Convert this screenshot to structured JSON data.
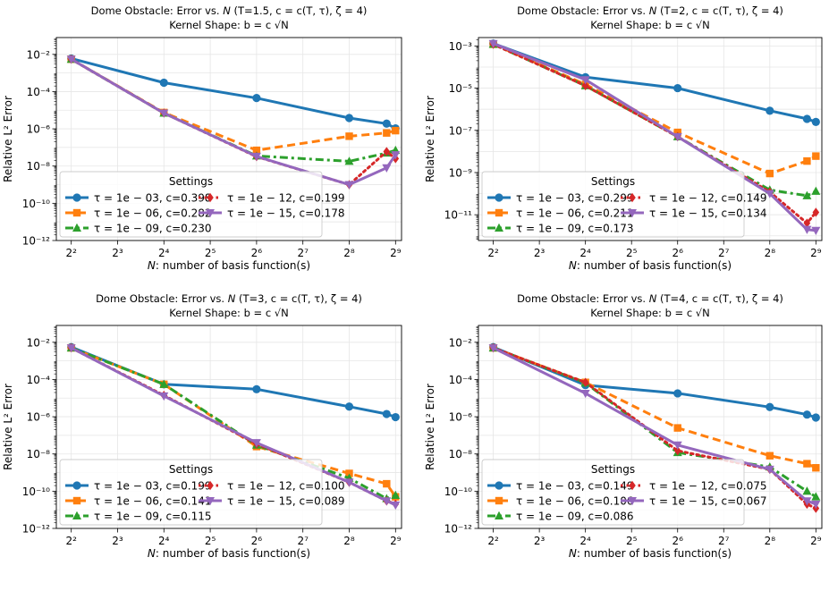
{
  "colors": {
    "blue": "#1f77b4",
    "orange": "#ff7f0e",
    "green": "#2ca02c",
    "red": "#d62728",
    "purple": "#9467bd"
  },
  "chart_data": [
    {
      "type": "line",
      "title_line1_prefix": "Dome Obstacle: Error vs.",
      "title_line1_var": "N",
      "title_line1_suffix": "(T=1.5, c = c(T, τ), ζ = 4)",
      "title_line2": "Kernel Shape: b = c √N",
      "xlabel_var": "N",
      "xlabel_rest": ": number of basis function(s)",
      "ylabel": "Relative L² Error",
      "xscale": "log2",
      "yscale": "log10",
      "x_ticks": [
        4,
        8,
        16,
        32,
        64,
        128,
        256,
        512
      ],
      "x_tick_labels": [
        "2²",
        "2³",
        "2⁴",
        "2⁵",
        "2⁶",
        "2⁷",
        "2⁸",
        "2⁹"
      ],
      "y_ticks": [
        1e-12,
        1e-10,
        1e-08,
        1e-06,
        0.0001,
        0.01
      ],
      "y_tick_labels": [
        "10⁻¹²",
        "10⁻¹⁰",
        "10⁻⁸",
        "10⁻⁶",
        "10⁻⁴",
        "10⁻²"
      ],
      "xlim": [
        3.2,
        560
      ],
      "ylim": [
        1e-12,
        0.08
      ],
      "grid": true,
      "legend": {
        "title": "Settings",
        "placement": "lower-left",
        "columns": 2
      },
      "series": [
        {
          "name": "τ = 1e − 03, c=0.398",
          "color": "blue",
          "dash": "solid",
          "marker": "circle",
          "x": [
            4,
            16,
            64,
            256,
            448,
            512
          ],
          "y": [
            0.006,
            0.0003,
            4.5e-05,
            3.8e-06,
            1.9e-06,
            1.05e-06
          ]
        },
        {
          "name": "τ = 1e − 06, c=0.282",
          "color": "orange",
          "dash": "dashed",
          "marker": "square",
          "x": [
            4,
            16,
            64,
            256,
            448,
            512
          ],
          "y": [
            0.0055,
            7.5e-06,
            7e-08,
            4e-07,
            6e-07,
            8e-07
          ]
        },
        {
          "name": "τ = 1e − 09, c=0.230",
          "color": "green",
          "dash": "dashdot",
          "marker": "triangle-up",
          "x": [
            4,
            16,
            64,
            256,
            448,
            512
          ],
          "y": [
            0.0055,
            7e-06,
            3.5e-08,
            1.8e-08,
            5e-08,
            7e-08
          ]
        },
        {
          "name": "τ = 1e − 12, c=0.199",
          "color": "red",
          "dash": "dotted",
          "marker": "diamond",
          "x": [
            4,
            16,
            64,
            256,
            448,
            512
          ],
          "y": [
            0.0055,
            7e-06,
            3.2e-08,
            1e-09,
            6e-08,
            2.5e-08
          ]
        },
        {
          "name": "τ = 1e − 15, c=0.178",
          "color": "purple",
          "dash": "solid",
          "marker": "triangle-down",
          "x": [
            4,
            16,
            64,
            256,
            448,
            512
          ],
          "y": [
            0.0055,
            7e-06,
            3.3e-08,
            1e-09,
            8e-09,
            4e-08
          ]
        }
      ]
    },
    {
      "type": "line",
      "title_line1_prefix": "Dome Obstacle: Error vs.",
      "title_line1_var": "N",
      "title_line1_suffix": "(T=2, c = c(T, τ), ζ = 4)",
      "title_line2": "Kernel Shape: b = c √N",
      "xlabel_var": "N",
      "xlabel_rest": ": number of basis function(s)",
      "ylabel": "Relative L² Error",
      "xscale": "log2",
      "yscale": "log10",
      "x_ticks": [
        4,
        8,
        16,
        32,
        64,
        128,
        256,
        512
      ],
      "x_tick_labels": [
        "2²",
        "2³",
        "2⁴",
        "2⁵",
        "2⁶",
        "2⁷",
        "2⁸",
        "2⁹"
      ],
      "y_ticks": [
        1e-11,
        1e-09,
        1e-07,
        1e-05,
        0.001
      ],
      "y_tick_labels": [
        "10⁻¹¹",
        "10⁻⁹",
        "10⁻⁷",
        "10⁻⁵",
        "10⁻³"
      ],
      "xlim": [
        3.2,
        560
      ],
      "ylim": [
        6e-13,
        0.0025
      ],
      "grid": true,
      "legend": {
        "title": "Settings",
        "placement": "lower-left",
        "columns": 2
      },
      "series": [
        {
          "name": "τ = 1e − 03, c=0.299",
          "color": "blue",
          "dash": "solid",
          "marker": "circle",
          "x": [
            4,
            16,
            64,
            256,
            448,
            512
          ],
          "y": [
            0.0013,
            3.3e-05,
            1e-05,
            8.5e-07,
            3.5e-07,
            2.5e-07
          ]
        },
        {
          "name": "τ = 1e − 06, c=0.211",
          "color": "orange",
          "dash": "dashed",
          "marker": "square",
          "x": [
            4,
            16,
            64,
            256,
            448,
            512
          ],
          "y": [
            0.0012,
            1.5e-05,
            8e-08,
            9e-10,
            3.5e-09,
            6e-09
          ]
        },
        {
          "name": "τ = 1e − 09, c=0.173",
          "color": "green",
          "dash": "dashdot",
          "marker": "triangle-up",
          "x": [
            4,
            16,
            64,
            256,
            448,
            512
          ],
          "y": [
            0.0012,
            1.3e-05,
            5e-08,
            1.5e-10,
            8e-11,
            1.3e-10
          ]
        },
        {
          "name": "τ = 1e − 12, c=0.149",
          "color": "red",
          "dash": "dotted",
          "marker": "diamond",
          "x": [
            4,
            16,
            64,
            256,
            448,
            512
          ],
          "y": [
            0.0012,
            1.3e-05,
            5e-08,
            1.2e-10,
            4e-12,
            1.3e-11
          ]
        },
        {
          "name": "τ = 1e − 15, c=0.134",
          "color": "purple",
          "dash": "solid",
          "marker": "triangle-down",
          "x": [
            4,
            16,
            64,
            256,
            448,
            512
          ],
          "y": [
            0.0013,
            2.5e-05,
            5e-08,
            1e-10,
            2e-12,
            1.8e-12
          ]
        }
      ]
    },
    {
      "type": "line",
      "title_line1_prefix": "Dome Obstacle: Error vs.",
      "title_line1_var": "N",
      "title_line1_suffix": "(T=3, c = c(T, τ), ζ = 4)",
      "title_line2": "Kernel Shape: b = c √N",
      "xlabel_var": "N",
      "xlabel_rest": ": number of basis function(s)",
      "ylabel": "Relative L² Error",
      "xscale": "log2",
      "yscale": "log10",
      "x_ticks": [
        4,
        8,
        16,
        32,
        64,
        128,
        256,
        512
      ],
      "x_tick_labels": [
        "2²",
        "2³",
        "2⁴",
        "2⁵",
        "2⁶",
        "2⁷",
        "2⁸",
        "2⁹"
      ],
      "y_ticks": [
        1e-12,
        1e-10,
        1e-08,
        1e-06,
        0.0001,
        0.01
      ],
      "y_tick_labels": [
        "10⁻¹²",
        "10⁻¹⁰",
        "10⁻⁸",
        "10⁻⁶",
        "10⁻⁴",
        "10⁻²"
      ],
      "xlim": [
        3.2,
        560
      ],
      "ylim": [
        1e-12,
        0.08
      ],
      "grid": true,
      "legend": {
        "title": "Settings",
        "placement": "lower-left",
        "columns": 2
      },
      "series": [
        {
          "name": "τ = 1e − 03, c=0.199",
          "color": "blue",
          "dash": "solid",
          "marker": "circle",
          "x": [
            4,
            16,
            64,
            256,
            448,
            512
          ],
          "y": [
            0.0055,
            5.5e-05,
            3e-05,
            3.5e-06,
            1.4e-06,
            9.5e-07
          ]
        },
        {
          "name": "τ = 1e − 06, c=0.141",
          "color": "orange",
          "dash": "dashed",
          "marker": "square",
          "x": [
            4,
            16,
            64,
            256,
            448,
            512
          ],
          "y": [
            0.005,
            5.5e-05,
            2.5e-08,
            9e-10,
            2.5e-10,
            5e-11
          ]
        },
        {
          "name": "τ = 1e − 09, c=0.115",
          "color": "green",
          "dash": "dashdot",
          "marker": "triangle-up",
          "x": [
            4,
            16,
            64,
            256,
            448,
            512
          ],
          "y": [
            0.005,
            5.5e-05,
            3e-08,
            5e-10,
            4e-11,
            6e-11
          ]
        },
        {
          "name": "τ = 1e − 12, c=0.100",
          "color": "red",
          "dash": "dotted",
          "marker": "diamond",
          "x": [
            4,
            16,
            64,
            256,
            448,
            512
          ],
          "y": [
            0.005,
            1.4e-05,
            3.5e-08,
            3e-10,
            3e-11,
            2e-11
          ]
        },
        {
          "name": "τ = 1e − 15, c=0.089",
          "color": "purple",
          "dash": "solid",
          "marker": "triangle-down",
          "x": [
            4,
            16,
            64,
            256,
            448,
            512
          ],
          "y": [
            0.005,
            1.3e-05,
            4e-08,
            3e-10,
            3e-11,
            1.8e-11
          ]
        }
      ]
    },
    {
      "type": "line",
      "title_line1_prefix": "Dome Obstacle: Error vs.",
      "title_line1_var": "N",
      "title_line1_suffix": "(T=4, c = c(T, τ), ζ = 4)",
      "title_line2": "Kernel Shape: b = c √N",
      "xlabel_var": "N",
      "xlabel_rest": ": number of basis function(s)",
      "ylabel": "Relative L² Error",
      "xscale": "log2",
      "yscale": "log10",
      "x_ticks": [
        4,
        8,
        16,
        32,
        64,
        128,
        256,
        512
      ],
      "x_tick_labels": [
        "2²",
        "2³",
        "2⁴",
        "2⁵",
        "2⁶",
        "2⁷",
        "2⁸",
        "2⁹"
      ],
      "y_ticks": [
        1e-12,
        1e-10,
        1e-08,
        1e-06,
        0.0001,
        0.01
      ],
      "y_tick_labels": [
        "10⁻¹²",
        "10⁻¹⁰",
        "10⁻⁸",
        "10⁻⁶",
        "10⁻⁴",
        "10⁻²"
      ],
      "xlim": [
        3.2,
        560
      ],
      "ylim": [
        1e-12,
        0.08
      ],
      "grid": true,
      "legend": {
        "title": "Settings",
        "placement": "lower-left",
        "columns": 2
      },
      "series": [
        {
          "name": "τ = 1e − 03, c=0.149",
          "color": "blue",
          "dash": "solid",
          "marker": "circle",
          "x": [
            4,
            16,
            64,
            256,
            448,
            512
          ],
          "y": [
            0.0055,
            5e-05,
            1.8e-05,
            3.3e-06,
            1.3e-06,
            9e-07
          ]
        },
        {
          "name": "τ = 1e − 06, c=0.106",
          "color": "orange",
          "dash": "dashed",
          "marker": "square",
          "x": [
            4,
            16,
            64,
            256,
            448,
            512
          ],
          "y": [
            0.005,
            7e-05,
            2.5e-07,
            8e-09,
            3e-09,
            1.8e-09
          ]
        },
        {
          "name": "τ = 1e − 09, c=0.086",
          "color": "green",
          "dash": "dashdot",
          "marker": "triangle-up",
          "x": [
            4,
            16,
            64,
            256,
            448,
            512
          ],
          "y": [
            0.005,
            6.5e-05,
            1.2e-08,
            2e-09,
            1e-10,
            5e-11
          ]
        },
        {
          "name": "τ = 1e − 12, c=0.075",
          "color": "red",
          "dash": "dotted",
          "marker": "diamond",
          "x": [
            4,
            16,
            64,
            256,
            448,
            512
          ],
          "y": [
            0.005,
            7e-05,
            1.5e-08,
            1.5e-09,
            2e-11,
            1.2e-11
          ]
        },
        {
          "name": "τ = 1e − 15, c=0.067",
          "color": "purple",
          "dash": "solid",
          "marker": "triangle-down",
          "x": [
            4,
            16,
            64,
            256,
            448,
            512
          ],
          "y": [
            0.005,
            1.8e-05,
            3e-08,
            1.5e-09,
            3e-11,
            2e-11
          ]
        }
      ]
    }
  ]
}
